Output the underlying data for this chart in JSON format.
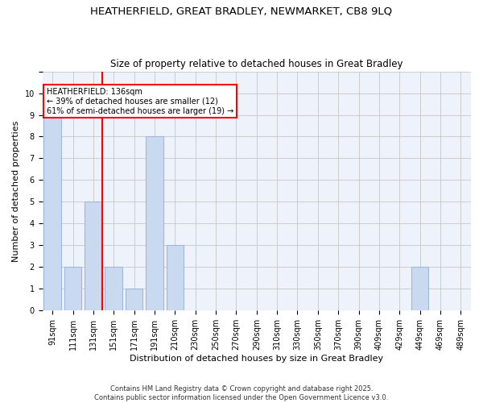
{
  "title1": "HEATHERFIELD, GREAT BRADLEY, NEWMARKET, CB8 9LQ",
  "title2": "Size of property relative to detached houses in Great Bradley",
  "xlabel": "Distribution of detached houses by size in Great Bradley",
  "ylabel": "Number of detached properties",
  "categories": [
    "91sqm",
    "111sqm",
    "131sqm",
    "151sqm",
    "171sqm",
    "191sqm",
    "210sqm",
    "230sqm",
    "250sqm",
    "270sqm",
    "290sqm",
    "310sqm",
    "330sqm",
    "350sqm",
    "370sqm",
    "390sqm",
    "409sqm",
    "429sqm",
    "449sqm",
    "469sqm",
    "489sqm"
  ],
  "values": [
    9,
    2,
    5,
    2,
    1,
    8,
    3,
    0,
    0,
    0,
    0,
    0,
    0,
    0,
    0,
    0,
    0,
    0,
    2,
    0,
    0
  ],
  "bar_color": "#c9d9f0",
  "bar_edge_color": "#a0b8d8",
  "grid_color": "#cccccc",
  "bg_color": "#eef2fa",
  "red_line_index": 2,
  "annotation_text": "HEATHERFIELD: 136sqm\n← 39% of detached houses are smaller (12)\n61% of semi-detached houses are larger (19) →",
  "ylim": [
    0,
    11
  ],
  "yticks": [
    0,
    1,
    2,
    3,
    4,
    5,
    6,
    7,
    8,
    9,
    10,
    11
  ],
  "footer": "Contains HM Land Registry data © Crown copyright and database right 2025.\nContains public sector information licensed under the Open Government Licence v3.0.",
  "title_fontsize": 9.5,
  "subtitle_fontsize": 8.5,
  "axis_label_fontsize": 8,
  "tick_fontsize": 7,
  "footer_fontsize": 6
}
